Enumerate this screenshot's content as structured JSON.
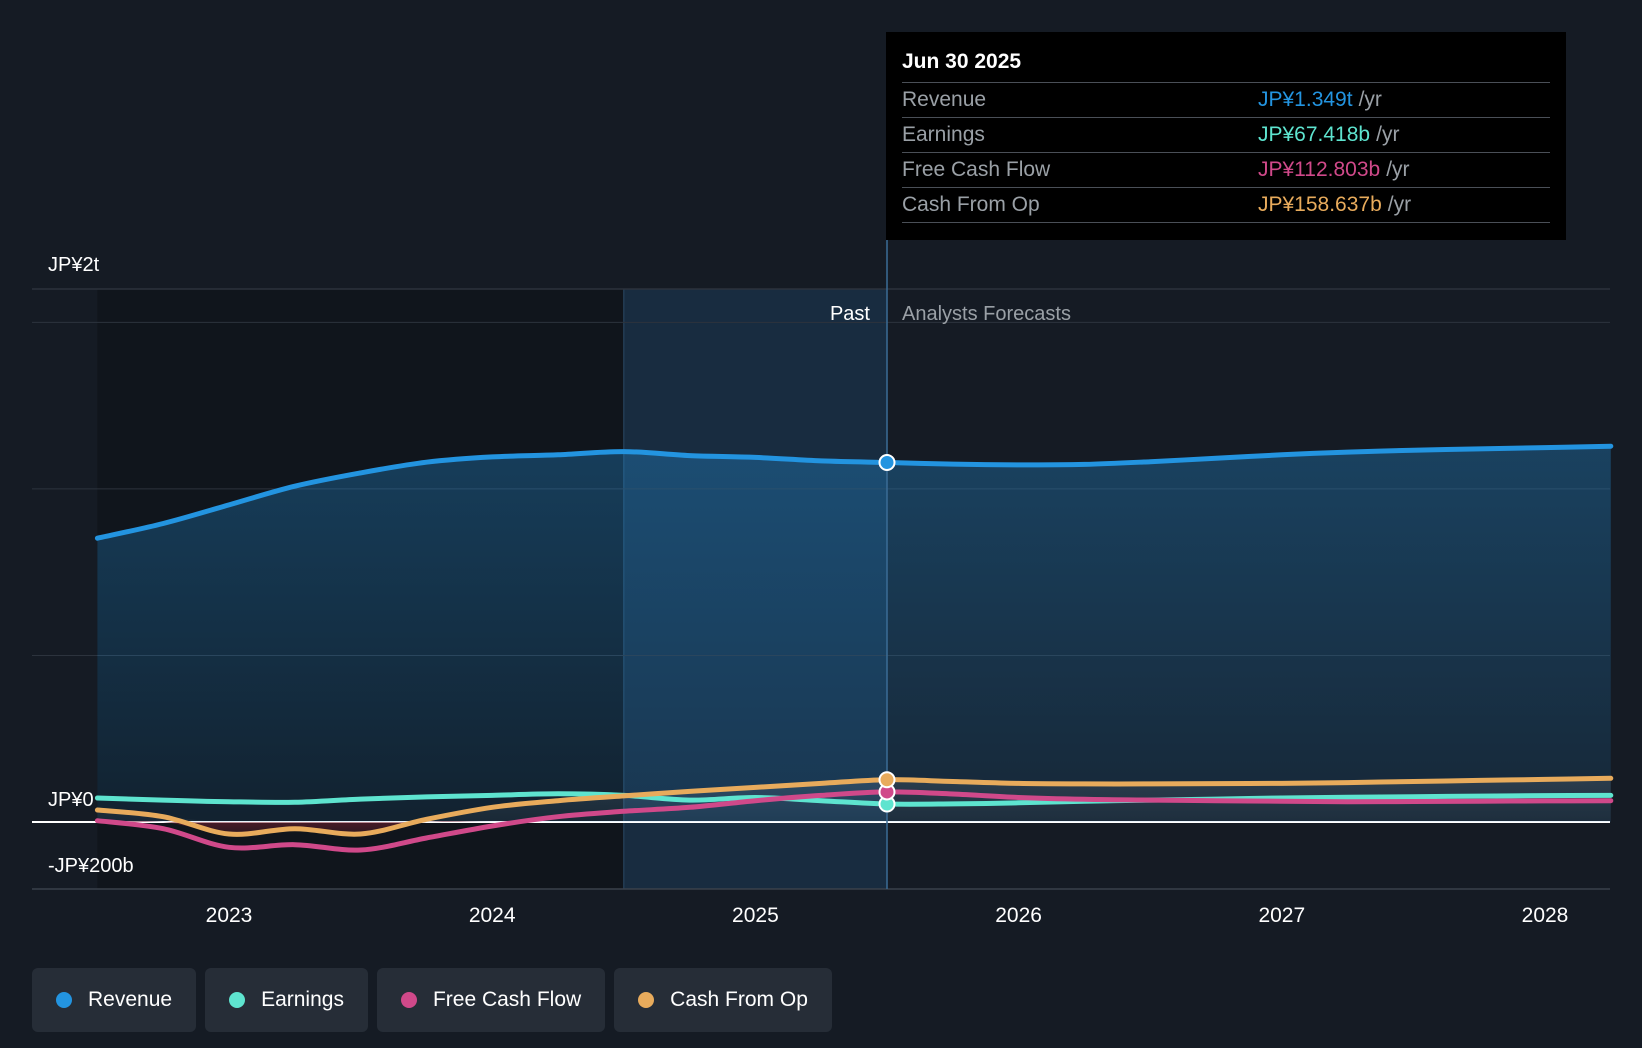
{
  "chart_data": {
    "type": "line",
    "title": "",
    "y_unit": "JP¥",
    "x_ticks": [
      "2023",
      "2024",
      "2025",
      "2026",
      "2027",
      "2028"
    ],
    "y_tick_labels": [
      {
        "value": 2000,
        "label": "JP¥2t"
      },
      {
        "value": 0,
        "label": "JP¥0"
      },
      {
        "value": -200,
        "label": "-JP¥200b"
      }
    ],
    "ylim": [
      -200,
      2000
    ],
    "xlim": [
      2022.45,
      2028.25
    ],
    "shaded_past_region": [
      2024.5,
      2025.5
    ],
    "divider_x": 2025.5,
    "divider_labels": {
      "past": "Past",
      "forecast": "Analysts Forecasts"
    },
    "series": [
      {
        "name": "Revenue",
        "color": "#2394e0",
        "area": true,
        "points": [
          [
            2022.5,
            1065
          ],
          [
            2022.75,
            1120
          ],
          [
            2023.0,
            1190
          ],
          [
            2023.25,
            1260
          ],
          [
            2023.5,
            1310
          ],
          [
            2023.75,
            1350
          ],
          [
            2024.0,
            1370
          ],
          [
            2024.25,
            1378
          ],
          [
            2024.5,
            1390
          ],
          [
            2024.75,
            1375
          ],
          [
            2025.0,
            1368
          ],
          [
            2025.25,
            1355
          ],
          [
            2025.5,
            1349
          ],
          [
            2025.75,
            1343
          ],
          [
            2026.0,
            1340
          ],
          [
            2026.25,
            1342
          ],
          [
            2026.5,
            1352
          ],
          [
            2026.75,
            1365
          ],
          [
            2027.0,
            1378
          ],
          [
            2027.25,
            1388
          ],
          [
            2027.5,
            1395
          ],
          [
            2027.75,
            1400
          ],
          [
            2028.0,
            1405
          ],
          [
            2028.25,
            1410
          ]
        ]
      },
      {
        "name": "Earnings",
        "color": "#5ee4cf",
        "area": false,
        "points": [
          [
            2022.5,
            90
          ],
          [
            2022.75,
            82
          ],
          [
            2023.0,
            76
          ],
          [
            2023.25,
            74
          ],
          [
            2023.5,
            86
          ],
          [
            2023.75,
            94
          ],
          [
            2024.0,
            100
          ],
          [
            2024.25,
            106
          ],
          [
            2024.5,
            100
          ],
          [
            2024.75,
            82
          ],
          [
            2025.0,
            92
          ],
          [
            2025.25,
            80
          ],
          [
            2025.5,
            67.4
          ],
          [
            2025.75,
            68
          ],
          [
            2026.0,
            72
          ],
          [
            2026.25,
            78
          ],
          [
            2026.5,
            82
          ],
          [
            2026.75,
            86
          ],
          [
            2027.0,
            90
          ],
          [
            2027.25,
            93
          ],
          [
            2027.5,
            95
          ],
          [
            2027.75,
            97
          ],
          [
            2028.0,
            99
          ],
          [
            2028.25,
            100
          ]
        ]
      },
      {
        "name": "Free Cash Flow",
        "color": "#d0498a",
        "area": false,
        "points": [
          [
            2022.5,
            5
          ],
          [
            2022.75,
            -25
          ],
          [
            2023.0,
            -95
          ],
          [
            2023.25,
            -85
          ],
          [
            2023.5,
            -105
          ],
          [
            2023.75,
            -60
          ],
          [
            2024.0,
            -15
          ],
          [
            2024.25,
            20
          ],
          [
            2024.5,
            40
          ],
          [
            2024.75,
            55
          ],
          [
            2025.0,
            80
          ],
          [
            2025.25,
            100
          ],
          [
            2025.5,
            112.8
          ],
          [
            2025.75,
            105
          ],
          [
            2026.0,
            92
          ],
          [
            2026.25,
            85
          ],
          [
            2026.5,
            82
          ],
          [
            2026.75,
            80
          ],
          [
            2027.0,
            78
          ],
          [
            2027.25,
            76
          ],
          [
            2027.5,
            77
          ],
          [
            2027.75,
            78
          ],
          [
            2028.0,
            79
          ],
          [
            2028.25,
            80
          ]
        ]
      },
      {
        "name": "Cash From Op",
        "color": "#e8ab5c",
        "area": false,
        "points": [
          [
            2022.5,
            45
          ],
          [
            2022.75,
            20
          ],
          [
            2023.0,
            -45
          ],
          [
            2023.25,
            -25
          ],
          [
            2023.5,
            -45
          ],
          [
            2023.75,
            10
          ],
          [
            2024.0,
            55
          ],
          [
            2024.25,
            80
          ],
          [
            2024.5,
            98
          ],
          [
            2024.75,
            115
          ],
          [
            2025.0,
            130
          ],
          [
            2025.25,
            145
          ],
          [
            2025.5,
            158.6
          ],
          [
            2025.75,
            152
          ],
          [
            2026.0,
            145
          ],
          [
            2026.25,
            143
          ],
          [
            2026.5,
            143
          ],
          [
            2026.75,
            144
          ],
          [
            2027.0,
            145
          ],
          [
            2027.25,
            148
          ],
          [
            2027.5,
            152
          ],
          [
            2027.75,
            156
          ],
          [
            2028.0,
            160
          ],
          [
            2028.25,
            164
          ]
        ]
      }
    ],
    "tooltip": {
      "date": "Jun 30 2025",
      "rows": [
        {
          "label": "Revenue",
          "value": "JP¥1.349t",
          "unit": "/yr",
          "color": "#2394e0"
        },
        {
          "label": "Earnings",
          "value": "JP¥67.418b",
          "unit": "/yr",
          "color": "#5ee4cf"
        },
        {
          "label": "Free Cash Flow",
          "value": "JP¥112.803b",
          "unit": "/yr",
          "color": "#d0498a"
        },
        {
          "label": "Cash From Op",
          "value": "JP¥158.637b",
          "unit": "/yr",
          "color": "#e8ab5c"
        }
      ]
    }
  },
  "legend": [
    {
      "label": "Revenue",
      "color": "#2394e0"
    },
    {
      "label": "Earnings",
      "color": "#5ee4cf"
    },
    {
      "label": "Free Cash Flow",
      "color": "#d0498a"
    },
    {
      "label": "Cash From Op",
      "color": "#e8ab5c"
    }
  ]
}
